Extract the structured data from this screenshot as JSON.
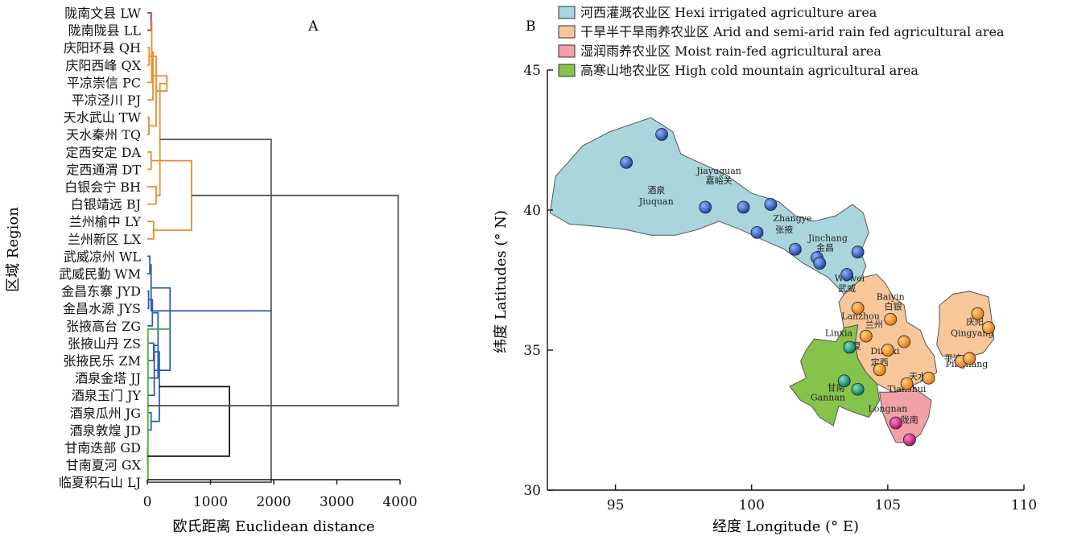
{
  "chart_data": [
    {
      "type": "dendrogram",
      "panel_label": "A",
      "xlabel": "欧氏距离 Euclidean distance",
      "ylabel": "区域 Region",
      "xlim": [
        0,
        4000
      ],
      "xticks": [
        "0",
        "1000",
        "2000",
        "3000",
        "4000"
      ],
      "leaves": [
        "陇南文县 LW",
        "陇南陇县 LL",
        "庆阳环县 QH",
        "庆阳西峰 QX",
        "平凉崇信 PC",
        "平凉泾川 PJ",
        "天水武山 TW",
        "天水秦州 TQ",
        "定西安定 DA",
        "定西通渭 DT",
        "白银会宁 BH",
        "白银靖远 BJ",
        "兰州榆中 LY",
        "兰州新区 LX",
        "武威凉州 WL",
        "武威民勤 WM",
        "金昌东寨 JYD",
        "金昌水源 JYS",
        "张掖高台 ZG",
        "张掖山丹 ZS",
        "张掖民乐 ZM",
        "酒泉金塔 JJ",
        "酒泉玉门 JY",
        "酒泉瓜州 JG",
        "酒泉敦煌 JD",
        "甘南迭部 GD",
        "甘南夏河 GX",
        "临夏积石山 LJ"
      ],
      "colors": {
        "LN": "#a4306b",
        "dry": "#ee8a2c",
        "hexi": "#2f5cb8",
        "alp": "#4caf35",
        "root": "#555555",
        "link": "#111111"
      },
      "merges": [
        {
          "a": 0,
          "b": 1,
          "h": 60,
          "c": "LN"
        },
        {
          "a": 2,
          "b": 3,
          "h": 30,
          "c": "dry"
        },
        {
          "a": 28,
          "b": 4,
          "h": 70,
          "c": "dry"
        },
        {
          "a": 6,
          "b": 7,
          "h": 25,
          "c": "dry"
        },
        {
          "a": 5,
          "b": 30,
          "h": 90,
          "c": "dry"
        },
        {
          "a": 29,
          "b": 31,
          "h": 140,
          "c": "dry"
        },
        {
          "a": 8,
          "b": 9,
          "h": 60,
          "c": "dry"
        },
        {
          "a": 32,
          "b": 33,
          "h": 310,
          "c": "dry"
        },
        {
          "a": 10,
          "b": 11,
          "h": 140,
          "c": "dry"
        },
        {
          "a": 12,
          "b": 13,
          "h": 100,
          "c": "dry"
        },
        {
          "a": 35,
          "b": 36,
          "h": 200,
          "c": "dry"
        },
        {
          "a": 34,
          "b": 37,
          "h": 700,
          "c": "dry"
        },
        {
          "a": 27,
          "b": 38,
          "h": 1960,
          "c": "root"
        },
        {
          "a": 14,
          "b": 15,
          "h": 40,
          "c": "hexi"
        },
        {
          "a": 16,
          "b": 17,
          "h": 20,
          "c": "hexi"
        },
        {
          "a": 40,
          "b": 41,
          "h": 60,
          "c": "hexi"
        },
        {
          "a": 42,
          "b": 18,
          "h": 80,
          "c": "hexi"
        },
        {
          "a": 19,
          "b": 20,
          "h": 100,
          "c": "hexi"
        },
        {
          "a": 44,
          "b": 21,
          "h": 170,
          "c": "hexi"
        },
        {
          "a": 23,
          "b": 24,
          "h": 60,
          "c": "hexi"
        },
        {
          "a": 22,
          "b": 46,
          "h": 110,
          "c": "hexi"
        },
        {
          "a": 45,
          "b": 47,
          "h": 190,
          "c": "hexi"
        },
        {
          "a": 43,
          "b": 48,
          "h": 360,
          "c": "hexi"
        },
        {
          "a": 25,
          "b": 26,
          "h": 5,
          "c": "alp"
        },
        {
          "a": 50,
          "b": 27,
          "h": 10,
          "c": "alp"
        },
        {
          "a": 49,
          "b": 51,
          "h": 1300,
          "c": "link"
        },
        {
          "a": 39,
          "b": 52,
          "h": 3970,
          "c": "root"
        }
      ]
    },
    {
      "type": "map",
      "panel_label": "B",
      "xlabel": "经度 Longitude (° E)",
      "ylabel": "纬度 Latitudes (° N)",
      "xlim": [
        92.5,
        110
      ],
      "ylim": [
        30,
        45
      ],
      "xticks": [
        95,
        100,
        105,
        110
      ],
      "yticks": [
        30,
        35,
        40,
        45
      ],
      "legend": [
        {
          "label": "河西灌溉农业区 Hexi irrigated agriculture area",
          "color": "#a9d6dc"
        },
        {
          "label": "干旱半干旱雨养农业区 Arid and semi-arid rain fed agricultural area",
          "color": "#f7c79a"
        },
        {
          "label": "湿润雨养农业区 Moist rain-fed agricultural area",
          "color": "#f2a1a7"
        },
        {
          "label": "高寒山地农业区 High cold mountain agricultural area",
          "color": "#86c34a"
        }
      ],
      "regions": [
        {
          "name": "hexi",
          "fill": "#a9d6dc",
          "pts": [
            [
              92.6,
              39.9
            ],
            [
              92.8,
              41.2
            ],
            [
              93.8,
              42.3
            ],
            [
              94.8,
              42.8
            ],
            [
              96.3,
              43.3
            ],
            [
              97.1,
              42.8
            ],
            [
              97.4,
              42.0
            ],
            [
              98.3,
              41.6
            ],
            [
              99.0,
              41.3
            ],
            [
              100.0,
              40.6
            ],
            [
              101.0,
              40.3
            ],
            [
              101.6,
              39.8
            ],
            [
              102.3,
              39.6
            ],
            [
              103.1,
              39.8
            ],
            [
              103.7,
              40.2
            ],
            [
              104.1,
              39.9
            ],
            [
              104.3,
              39.2
            ],
            [
              104.0,
              38.5
            ],
            [
              104.2,
              38.0
            ],
            [
              103.9,
              37.3
            ],
            [
              103.4,
              37.0
            ],
            [
              102.8,
              37.6
            ],
            [
              101.9,
              38.1
            ],
            [
              101.2,
              38.6
            ],
            [
              100.5,
              38.9
            ],
            [
              99.6,
              39.3
            ],
            [
              98.8,
              39.6
            ],
            [
              98.0,
              39.3
            ],
            [
              97.2,
              39.1
            ],
            [
              96.3,
              39.1
            ],
            [
              95.4,
              39.3
            ],
            [
              94.5,
              39.4
            ],
            [
              93.3,
              39.5
            ]
          ]
        },
        {
          "name": "arid",
          "fill": "#f7c79a",
          "pts": [
            [
              103.4,
              37.0
            ],
            [
              104.1,
              37.6
            ],
            [
              104.6,
              37.7
            ],
            [
              104.9,
              37.4
            ],
            [
              105.2,
              36.9
            ],
            [
              105.6,
              36.6
            ],
            [
              105.7,
              36.0
            ],
            [
              106.2,
              35.7
            ],
            [
              106.4,
              35.2
            ],
            [
              106.7,
              34.8
            ],
            [
              106.8,
              34.2
            ],
            [
              106.3,
              33.9
            ],
            [
              105.8,
              33.7
            ],
            [
              105.2,
              33.5
            ],
            [
              104.6,
              33.8
            ],
            [
              104.2,
              34.2
            ],
            [
              103.9,
              34.7
            ],
            [
              103.8,
              35.2
            ],
            [
              103.4,
              35.7
            ],
            [
              103.3,
              36.3
            ],
            [
              103.2,
              36.7
            ]
          ]
        },
        {
          "name": "arid-east",
          "fill": "#f7c79a",
          "pts": [
            [
              106.8,
              35.2
            ],
            [
              106.9,
              35.9
            ],
            [
              106.9,
              36.6
            ],
            [
              107.4,
              37.0
            ],
            [
              108.0,
              37.1
            ],
            [
              108.7,
              36.9
            ],
            [
              108.8,
              36.2
            ],
            [
              108.9,
              35.4
            ],
            [
              108.5,
              34.9
            ],
            [
              107.7,
              34.7
            ],
            [
              107.0,
              34.8
            ]
          ]
        },
        {
          "name": "moist",
          "fill": "#f2a1a7",
          "pts": [
            [
              104.7,
              33.5
            ],
            [
              105.3,
              33.5
            ],
            [
              105.9,
              33.7
            ],
            [
              106.6,
              33.2
            ],
            [
              106.5,
              32.6
            ],
            [
              106.2,
              32.0
            ],
            [
              105.8,
              31.7
            ],
            [
              105.3,
              31.7
            ],
            [
              105.0,
              32.3
            ],
            [
              104.8,
              32.8
            ]
          ]
        },
        {
          "name": "alpine",
          "fill": "#86c34a",
          "pts": [
            [
              102.3,
              35.4
            ],
            [
              103.1,
              35.3
            ],
            [
              103.4,
              35.8
            ],
            [
              103.9,
              35.9
            ],
            [
              103.8,
              35.2
            ],
            [
              103.9,
              34.7
            ],
            [
              104.2,
              34.2
            ],
            [
              104.6,
              33.8
            ],
            [
              104.7,
              33.2
            ],
            [
              104.3,
              32.6
            ],
            [
              103.7,
              32.8
            ],
            [
              103.2,
              33.0
            ],
            [
              103.0,
              32.3
            ],
            [
              102.5,
              32.6
            ],
            [
              102.2,
              33.0
            ],
            [
              101.8,
              33.2
            ],
            [
              101.4,
              33.7
            ],
            [
              102.0,
              34.0
            ],
            [
              101.8,
              34.6
            ],
            [
              102.0,
              35.0
            ]
          ]
        }
      ],
      "points": [
        {
          "lon": 96.7,
          "lat": 42.7,
          "c": "blue"
        },
        {
          "lon": 95.4,
          "lat": 41.7,
          "c": "blue"
        },
        {
          "lon": 98.3,
          "lat": 40.1,
          "c": "blue"
        },
        {
          "lon": 99.7,
          "lat": 40.1,
          "c": "blue"
        },
        {
          "lon": 100.7,
          "lat": 40.2,
          "c": "blue"
        },
        {
          "lon": 100.2,
          "lat": 39.2,
          "c": "blue"
        },
        {
          "lon": 101.6,
          "lat": 38.6,
          "c": "blue"
        },
        {
          "lon": 102.4,
          "lat": 38.3,
          "c": "blue"
        },
        {
          "lon": 102.5,
          "lat": 38.1,
          "c": "blue"
        },
        {
          "lon": 103.9,
          "lat": 38.5,
          "c": "blue"
        },
        {
          "lon": 103.5,
          "lat": 37.7,
          "c": "blue"
        },
        {
          "lon": 103.9,
          "lat": 36.5,
          "c": "orange"
        },
        {
          "lon": 105.1,
          "lat": 36.1,
          "c": "orange"
        },
        {
          "lon": 104.2,
          "lat": 35.5,
          "c": "orange"
        },
        {
          "lon": 105.0,
          "lat": 35.0,
          "c": "orange"
        },
        {
          "lon": 105.6,
          "lat": 35.3,
          "c": "orange"
        },
        {
          "lon": 104.7,
          "lat": 34.3,
          "c": "orange"
        },
        {
          "lon": 105.7,
          "lat": 33.8,
          "c": "orange"
        },
        {
          "lon": 106.5,
          "lat": 34.0,
          "c": "orange"
        },
        {
          "lon": 108.3,
          "lat": 36.3,
          "c": "orange"
        },
        {
          "lon": 108.7,
          "lat": 35.8,
          "c": "orange"
        },
        {
          "lon": 107.7,
          "lat": 34.6,
          "c": "orange"
        },
        {
          "lon": 108.0,
          "lat": 34.7,
          "c": "orange"
        },
        {
          "lon": 103.6,
          "lat": 35.1,
          "c": "green"
        },
        {
          "lon": 103.4,
          "lat": 33.9,
          "c": "green"
        },
        {
          "lon": 103.9,
          "lat": 33.6,
          "c": "green"
        },
        {
          "lon": 105.3,
          "lat": 32.4,
          "c": "pink"
        },
        {
          "lon": 105.8,
          "lat": 31.8,
          "c": "pink"
        }
      ],
      "labels": [
        {
          "t": "Jiayuguan",
          "lon": 98.8,
          "lat": 41.3
        },
        {
          "t": "嘉峪关",
          "lon": 98.8,
          "lat": 40.95
        },
        {
          "t": "酒泉",
          "lon": 96.5,
          "lat": 40.6
        },
        {
          "t": "Jiuquan",
          "lon": 96.5,
          "lat": 40.2
        },
        {
          "t": "Zhangye",
          "lon": 101.5,
          "lat": 39.6
        },
        {
          "t": "张掖",
          "lon": 101.2,
          "lat": 39.2
        },
        {
          "t": "Jinchang",
          "lon": 102.8,
          "lat": 38.9
        },
        {
          "t": "金昌",
          "lon": 102.7,
          "lat": 38.55
        },
        {
          "t": "Wuwei",
          "lon": 103.6,
          "lat": 37.45
        },
        {
          "t": "武威",
          "lon": 103.5,
          "lat": 37.1
        },
        {
          "t": "Baiyin",
          "lon": 105.1,
          "lat": 36.8
        },
        {
          "t": "白银",
          "lon": 105.2,
          "lat": 36.45
        },
        {
          "t": "Lanzhou",
          "lon": 104.0,
          "lat": 36.1
        },
        {
          "t": "兰州",
          "lon": 104.5,
          "lat": 35.8
        },
        {
          "t": "Linxia",
          "lon": 103.2,
          "lat": 35.5
        },
        {
          "t": "临夏",
          "lon": 103.7,
          "lat": 35.05
        },
        {
          "t": "Dingxi",
          "lon": 104.9,
          "lat": 34.85
        },
        {
          "t": "定西",
          "lon": 104.7,
          "lat": 34.45
        },
        {
          "t": "庆阳",
          "lon": 108.2,
          "lat": 35.9
        },
        {
          "t": "Qingyang",
          "lon": 108.1,
          "lat": 35.5
        },
        {
          "t": "平凉",
          "lon": 107.4,
          "lat": 34.6
        },
        {
          "t": "Pingliang",
          "lon": 107.9,
          "lat": 34.4
        },
        {
          "t": "天水",
          "lon": 106.1,
          "lat": 33.95
        },
        {
          "t": "Tianshui",
          "lon": 105.7,
          "lat": 33.5
        },
        {
          "t": "甘南",
          "lon": 103.1,
          "lat": 33.55
        },
        {
          "t": "Gannan",
          "lon": 102.8,
          "lat": 33.2
        },
        {
          "t": "Longnan",
          "lon": 105.0,
          "lat": 32.8
        },
        {
          "t": "陇南",
          "lon": 105.8,
          "lat": 32.4
        }
      ]
    }
  ]
}
